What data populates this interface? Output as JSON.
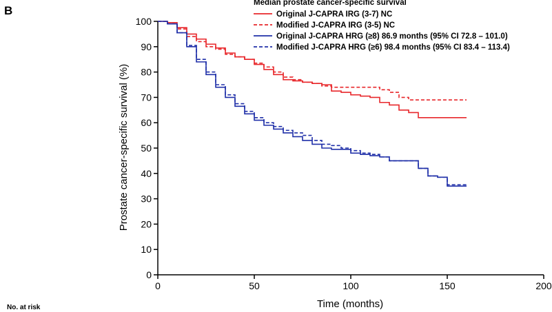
{
  "panel_label": "B",
  "risk_label": "No. at risk",
  "chart_data": {
    "type": "line",
    "title": "",
    "xlabel": "Time (months)",
    "ylabel": "Prostate cancer-specific survival (%)",
    "xlim": [
      0,
      200
    ],
    "ylim": [
      0,
      100
    ],
    "xticks": [
      0,
      50,
      100,
      150,
      200
    ],
    "yticks": [
      0,
      10,
      20,
      30,
      40,
      50,
      60,
      70,
      80,
      90,
      100
    ],
    "grid": false,
    "legend_title": "Median prostate cancer-specific survival",
    "legend_position": "top-right",
    "series": [
      {
        "name": "Original J-CAPRA IRG (3-7) NC",
        "color": "#e8262a",
        "dash": "solid",
        "x": [
          0,
          5,
          10,
          15,
          20,
          25,
          30,
          35,
          40,
          45,
          50,
          55,
          60,
          65,
          70,
          75,
          80,
          85,
          90,
          95,
          100,
          105,
          110,
          115,
          120,
          125,
          130,
          135,
          140,
          150,
          160
        ],
        "y": [
          100,
          99.5,
          97.5,
          95,
          93,
          91,
          89.5,
          87.5,
          86,
          85,
          83,
          81,
          79,
          77,
          76.5,
          76,
          75.5,
          75,
          72.5,
          72,
          71,
          70.5,
          70,
          68,
          67,
          65,
          64,
          62,
          62,
          62,
          62
        ]
      },
      {
        "name": "Modified J-CAPRA IRG (3-5) NC",
        "color": "#e8262a",
        "dash": "dashed",
        "x": [
          0,
          5,
          10,
          15,
          20,
          25,
          30,
          35,
          40,
          45,
          50,
          55,
          60,
          65,
          70,
          75,
          80,
          85,
          90,
          100,
          110,
          115,
          120,
          125,
          130,
          140,
          150,
          160
        ],
        "y": [
          100,
          99.5,
          97,
          94,
          92,
          90,
          89,
          87,
          86,
          85,
          83.5,
          82,
          80,
          78,
          77,
          76,
          75.5,
          74.5,
          74,
          74,
          74,
          73,
          72,
          70,
          69,
          69,
          69,
          69
        ]
      },
      {
        "name": "Original J-CAPRA HRG (≥8) 86.9 months (95% CI 72.8 – 101.0)",
        "color": "#1f2fa8",
        "dash": "solid",
        "x": [
          0,
          5,
          10,
          15,
          20,
          25,
          30,
          35,
          40,
          45,
          50,
          55,
          60,
          65,
          70,
          75,
          80,
          85,
          90,
          95,
          100,
          105,
          110,
          115,
          120,
          125,
          130,
          135,
          140,
          145,
          150,
          155,
          160
        ],
        "y": [
          100,
          99,
          95.5,
          90,
          84,
          79,
          74,
          70,
          66.5,
          63.5,
          61,
          59,
          57.5,
          56,
          54.5,
          53,
          51.5,
          50,
          49.5,
          49.5,
          48,
          47.5,
          47,
          46.5,
          45,
          45,
          45,
          42,
          39,
          38.5,
          35,
          35,
          35
        ]
      },
      {
        "name": "Modified J-CAPRA HRG (≥6) 98.4 months (95% CI 83.4 – 113.4)",
        "color": "#1f2fa8",
        "dash": "dashed",
        "x": [
          0,
          5,
          10,
          15,
          20,
          25,
          30,
          35,
          40,
          45,
          50,
          55,
          60,
          65,
          70,
          75,
          80,
          85,
          90,
          95,
          100,
          105,
          110,
          115,
          120,
          125,
          130,
          135,
          140,
          145,
          150,
          155,
          160
        ],
        "y": [
          100,
          99,
          95.5,
          90.5,
          85,
          80,
          75,
          71,
          67.5,
          64.5,
          62,
          60,
          58.5,
          57,
          56,
          55,
          53,
          51.5,
          51,
          50,
          49,
          48,
          47.5,
          46.5,
          45,
          45,
          45,
          42,
          39,
          38.5,
          35.5,
          35.5,
          35.5
        ]
      }
    ]
  }
}
